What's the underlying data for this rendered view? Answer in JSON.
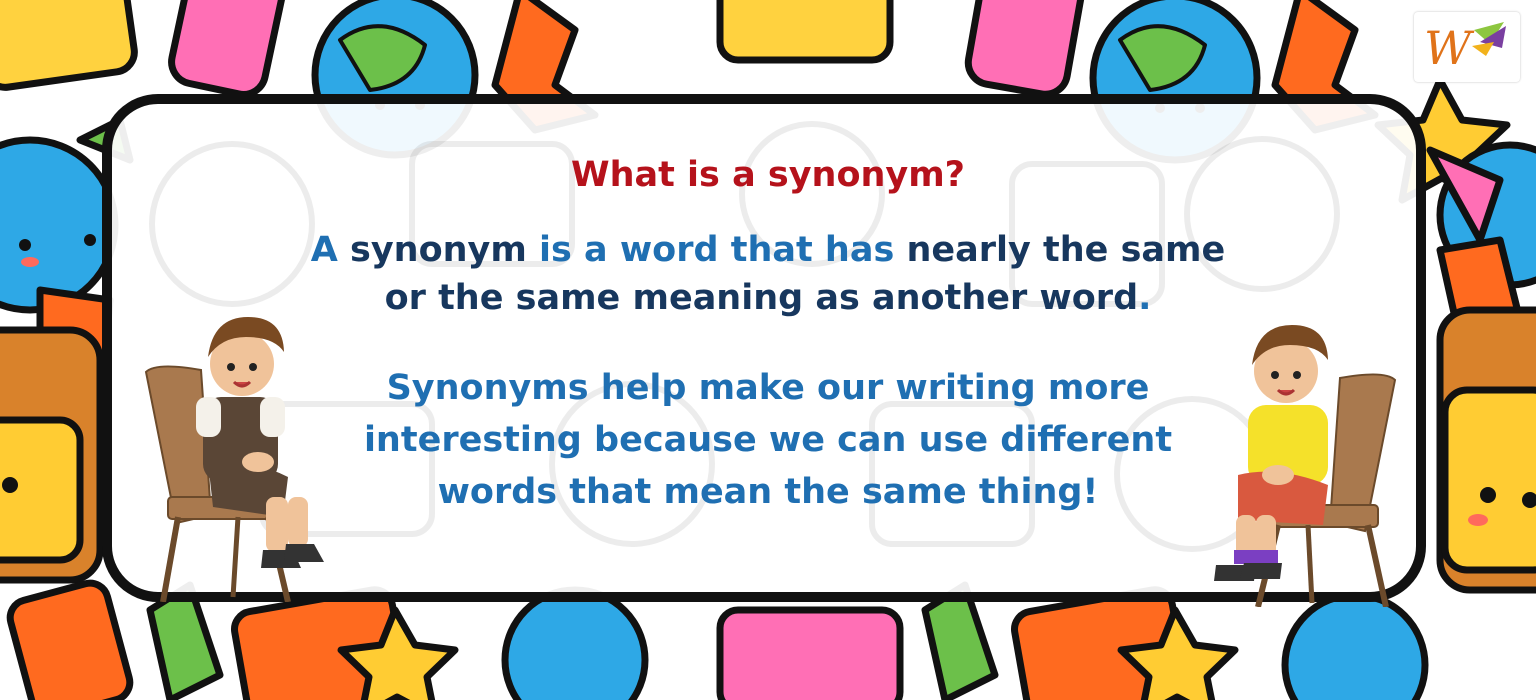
{
  "heading": "What is a synonym?",
  "definition": {
    "line1_a": "A",
    "line1_b": "synonym",
    "line1_c": "is a word that has",
    "line1_d": "nearly the same",
    "line2": "or the same meaning as another word",
    "line2_period": "."
  },
  "explanation": {
    "line1": "Synonyms help make our writing more",
    "line2": "interesting because we can use different",
    "line3": "words that mean the same thing!"
  },
  "logo_text": "W",
  "colors": {
    "heading": "#b5121b",
    "dark_blue": "#17375e",
    "light_blue": "#1f6fb2",
    "frame": "#111111"
  },
  "icons": [
    "logo-icon",
    "boy-sitting-left-illustration",
    "boy-sitting-right-illustration",
    "school-supplies-background"
  ]
}
